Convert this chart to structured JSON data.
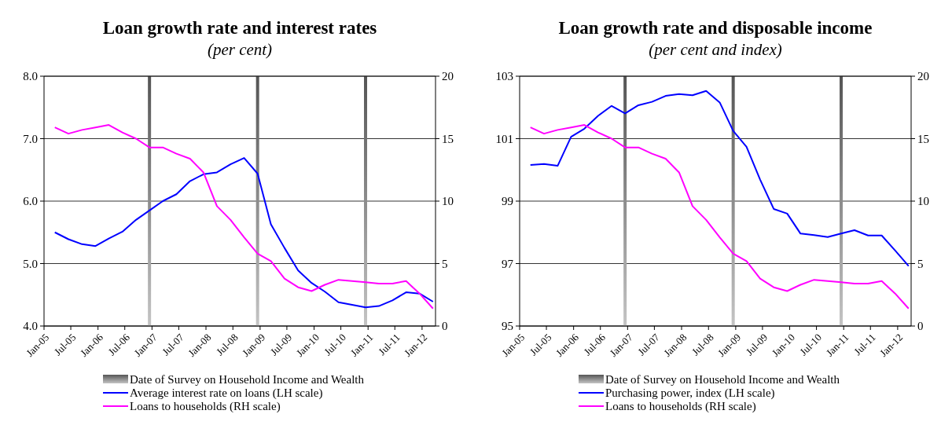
{
  "chart_data": [
    {
      "type": "line",
      "title": "Loan growth rate and interest rates",
      "subtitle": "(per cent)",
      "x": [
        "2005-03-15",
        "2005-06-15",
        "2005-09-15",
        "2005-12-15",
        "2006-03-15",
        "2006-06-15",
        "2006-09-15",
        "2006-12-15",
        "2007-03-15",
        "2007-06-15",
        "2007-09-15",
        "2007-12-15",
        "2008-03-15",
        "2008-06-15",
        "2008-09-15",
        "2008-12-15",
        "2009-03-15",
        "2009-06-15",
        "2009-09-15",
        "2009-12-15",
        "2010-03-15",
        "2010-06-15",
        "2010-09-15",
        "2010-12-15",
        "2011-03-15",
        "2011-06-15",
        "2011-09-15",
        "2011-12-15",
        "2012-03-15"
      ],
      "xlim": [
        "2005-01-01",
        "2012-04-01"
      ],
      "xticks": [
        {
          "value": "2005-01-01",
          "label": "Jan-05"
        },
        {
          "value": "2005-07-01",
          "label": "Jul-05"
        },
        {
          "value": "2006-01-01",
          "label": "Jan-06"
        },
        {
          "value": "2006-07-01",
          "label": "Jul-06"
        },
        {
          "value": "2007-01-01",
          "label": "Jan-07"
        },
        {
          "value": "2007-07-01",
          "label": "Jul-07"
        },
        {
          "value": "2008-01-01",
          "label": "Jan-08"
        },
        {
          "value": "2008-07-01",
          "label": "Jul-08"
        },
        {
          "value": "2009-01-01",
          "label": "Jan-09"
        },
        {
          "value": "2009-07-01",
          "label": "Jul-09"
        },
        {
          "value": "2010-01-01",
          "label": "Jan-10"
        },
        {
          "value": "2010-07-01",
          "label": "Jul-10"
        },
        {
          "value": "2011-01-01",
          "label": "Jan-11"
        },
        {
          "value": "2011-07-01",
          "label": "Jul-11"
        },
        {
          "value": "2012-01-01",
          "label": "Jan-12"
        }
      ],
      "ylim": [
        4,
        8
      ],
      "yticks": [
        {
          "value": 4,
          "label": "4.0"
        },
        {
          "value": 5,
          "label": "5.0"
        },
        {
          "value": 6,
          "label": "6.0"
        },
        {
          "value": 7,
          "label": "7.0"
        },
        {
          "value": 8,
          "label": "8.0"
        }
      ],
      "y2lim": [
        0,
        20
      ],
      "y2ticks": [
        0,
        5,
        10,
        15,
        20
      ],
      "grid": "y",
      "legend": "bottom",
      "marker": "none",
      "line_style": "solid",
      "ref_lines": [
        {
          "axis": "x",
          "value": "2006-12-15",
          "label": "Date of Survey on Household Income and Wealth",
          "color": "#555555"
        },
        {
          "axis": "x",
          "value": "2008-12-15",
          "color": "#555555"
        },
        {
          "axis": "x",
          "value": "2010-12-15",
          "color": "#555555"
        }
      ],
      "series": [
        {
          "name": "Average interest rate on loans (LH scale)",
          "color": "#0000ff",
          "values": [
            5.5,
            5.39,
            5.31,
            5.28,
            5.4,
            5.51,
            5.7,
            5.85,
            6.0,
            6.11,
            6.32,
            6.43,
            6.46,
            6.59,
            6.69,
            6.44,
            5.63,
            5.25,
            4.89,
            4.69,
            4.55,
            4.38,
            4.34,
            4.3,
            4.32,
            4.41,
            4.54,
            4.52,
            4.39
          ]
        },
        {
          "name": "Loans to households (RH scale)",
          "color": "#ff00ff",
          "axis": "y2",
          "values": [
            15.9,
            15.4,
            15.7,
            15.9,
            16.1,
            15.5,
            15.0,
            14.3,
            14.3,
            13.8,
            13.4,
            12.3,
            9.6,
            8.5,
            7.1,
            5.8,
            5.2,
            3.8,
            3.1,
            2.8,
            3.3,
            3.7,
            3.6,
            3.5,
            3.4,
            3.4,
            3.6,
            2.6,
            1.4
          ]
        }
      ]
    },
    {
      "type": "line",
      "title": "Loan growth rate and disposable income",
      "subtitle": "(per cent and index)",
      "x": [
        "2005-03-15",
        "2005-06-15",
        "2005-09-15",
        "2005-12-15",
        "2006-03-15",
        "2006-06-15",
        "2006-09-15",
        "2006-12-15",
        "2007-03-15",
        "2007-06-15",
        "2007-09-15",
        "2007-12-15",
        "2008-03-15",
        "2008-06-15",
        "2008-09-15",
        "2008-12-15",
        "2009-03-15",
        "2009-06-15",
        "2009-09-15",
        "2009-12-15",
        "2010-03-15",
        "2010-06-15",
        "2010-09-15",
        "2010-12-15",
        "2011-03-15",
        "2011-06-15",
        "2011-09-15",
        "2011-12-15",
        "2012-03-15"
      ],
      "xlim": [
        "2005-01-01",
        "2012-04-01"
      ],
      "xticks": [
        {
          "value": "2005-01-01",
          "label": "Jan-05"
        },
        {
          "value": "2005-07-01",
          "label": "Jul-05"
        },
        {
          "value": "2006-01-01",
          "label": "Jan-06"
        },
        {
          "value": "2006-07-01",
          "label": "Jul-06"
        },
        {
          "value": "2007-01-01",
          "label": "Jan-07"
        },
        {
          "value": "2007-07-01",
          "label": "Jul-07"
        },
        {
          "value": "2008-01-01",
          "label": "Jan-08"
        },
        {
          "value": "2008-07-01",
          "label": "Jul-08"
        },
        {
          "value": "2009-01-01",
          "label": "Jan-09"
        },
        {
          "value": "2009-07-01",
          "label": "Jul-09"
        },
        {
          "value": "2010-01-01",
          "label": "Jan-10"
        },
        {
          "value": "2010-07-01",
          "label": "Jul-10"
        },
        {
          "value": "2011-01-01",
          "label": "Jan-11"
        },
        {
          "value": "2011-07-01",
          "label": "Jul-11"
        },
        {
          "value": "2012-01-01",
          "label": "Jan-12"
        }
      ],
      "ylim": [
        95,
        103
      ],
      "yticks": [
        95,
        97,
        99,
        101,
        103
      ],
      "y2lim": [
        0,
        20
      ],
      "y2ticks": [
        0,
        5,
        10,
        15,
        20
      ],
      "grid": "y",
      "legend": "bottom",
      "marker": "none",
      "line_style": "solid",
      "ref_lines": [
        {
          "axis": "x",
          "value": "2006-12-15",
          "label": "Date of Survey on Household Income and Wealth",
          "color": "#555555"
        },
        {
          "axis": "x",
          "value": "2008-12-15",
          "color": "#555555"
        },
        {
          "axis": "x",
          "value": "2010-12-15",
          "color": "#555555"
        }
      ],
      "series": [
        {
          "name": "Purchasing power, index (LH scale)",
          "color": "#0000ff",
          "values": [
            100.16,
            100.19,
            100.13,
            101.06,
            101.32,
            101.73,
            102.05,
            101.81,
            102.07,
            102.18,
            102.37,
            102.43,
            102.39,
            102.53,
            102.16,
            101.25,
            100.74,
            99.69,
            98.75,
            98.6,
            97.96,
            97.91,
            97.85,
            97.96,
            98.07,
            97.9,
            97.9,
            97.42,
            96.92
          ]
        },
        {
          "name": "Loans to households (RH scale)",
          "color": "#ff00ff",
          "axis": "y2",
          "values": [
            15.9,
            15.4,
            15.7,
            15.9,
            16.1,
            15.5,
            15.0,
            14.3,
            14.3,
            13.8,
            13.4,
            12.3,
            9.6,
            8.5,
            7.1,
            5.8,
            5.2,
            3.8,
            3.1,
            2.8,
            3.3,
            3.7,
            3.6,
            3.5,
            3.4,
            3.4,
            3.6,
            2.6,
            1.4
          ]
        }
      ]
    }
  ]
}
